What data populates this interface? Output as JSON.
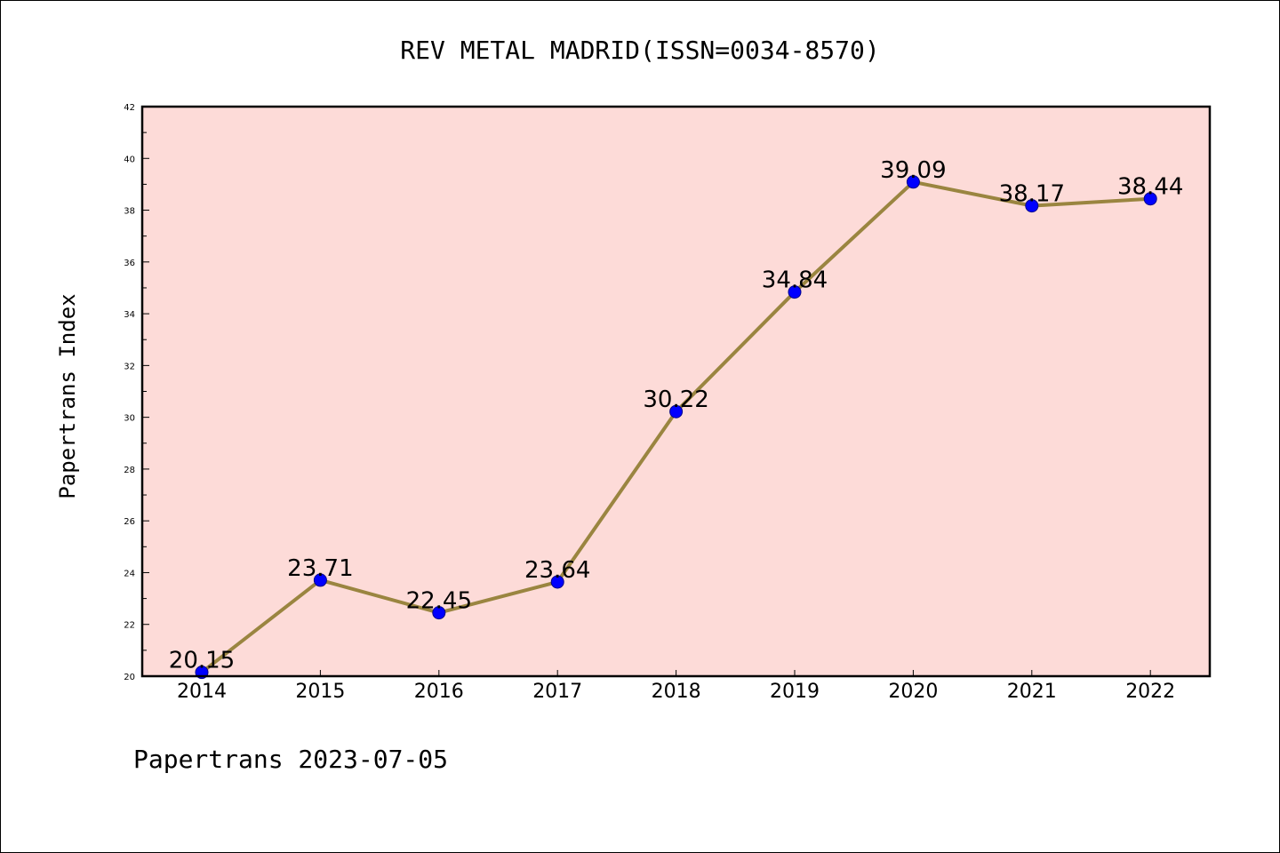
{
  "chart_data": {
    "type": "line",
    "title": "REV METAL MADRID(ISSN=0034-8570)",
    "ylabel": "Papertrans Index",
    "xlabel": "",
    "footer": "Papertrans 2023-07-05",
    "categories": [
      "2014",
      "2015",
      "2016",
      "2017",
      "2018",
      "2019",
      "2020",
      "2021",
      "2022"
    ],
    "values": [
      20.15,
      23.71,
      22.45,
      23.64,
      30.22,
      34.84,
      39.09,
      38.17,
      38.44
    ],
    "data_labels": [
      "20.15",
      "23.71",
      "22.45",
      "23.64",
      "30.22",
      "34.84",
      "39.09",
      "38.17",
      "38.44"
    ],
    "ylim": [
      20,
      42
    ],
    "yticks": [
      20,
      22,
      24,
      26,
      28,
      30,
      32,
      34,
      36,
      38,
      40,
      42
    ],
    "ytick_labels": [
      "20",
      "22",
      "24",
      "26",
      "28",
      "30",
      "32",
      "34",
      "36",
      "38",
      "40",
      "42"
    ],
    "grid": false,
    "legend": "none",
    "colors": {
      "plot_background": "#fddbd8",
      "line": "#9a8540",
      "marker": "#0000ff",
      "marker_edge": "#00008b",
      "axis": "#000000",
      "text": "#000000"
    }
  }
}
